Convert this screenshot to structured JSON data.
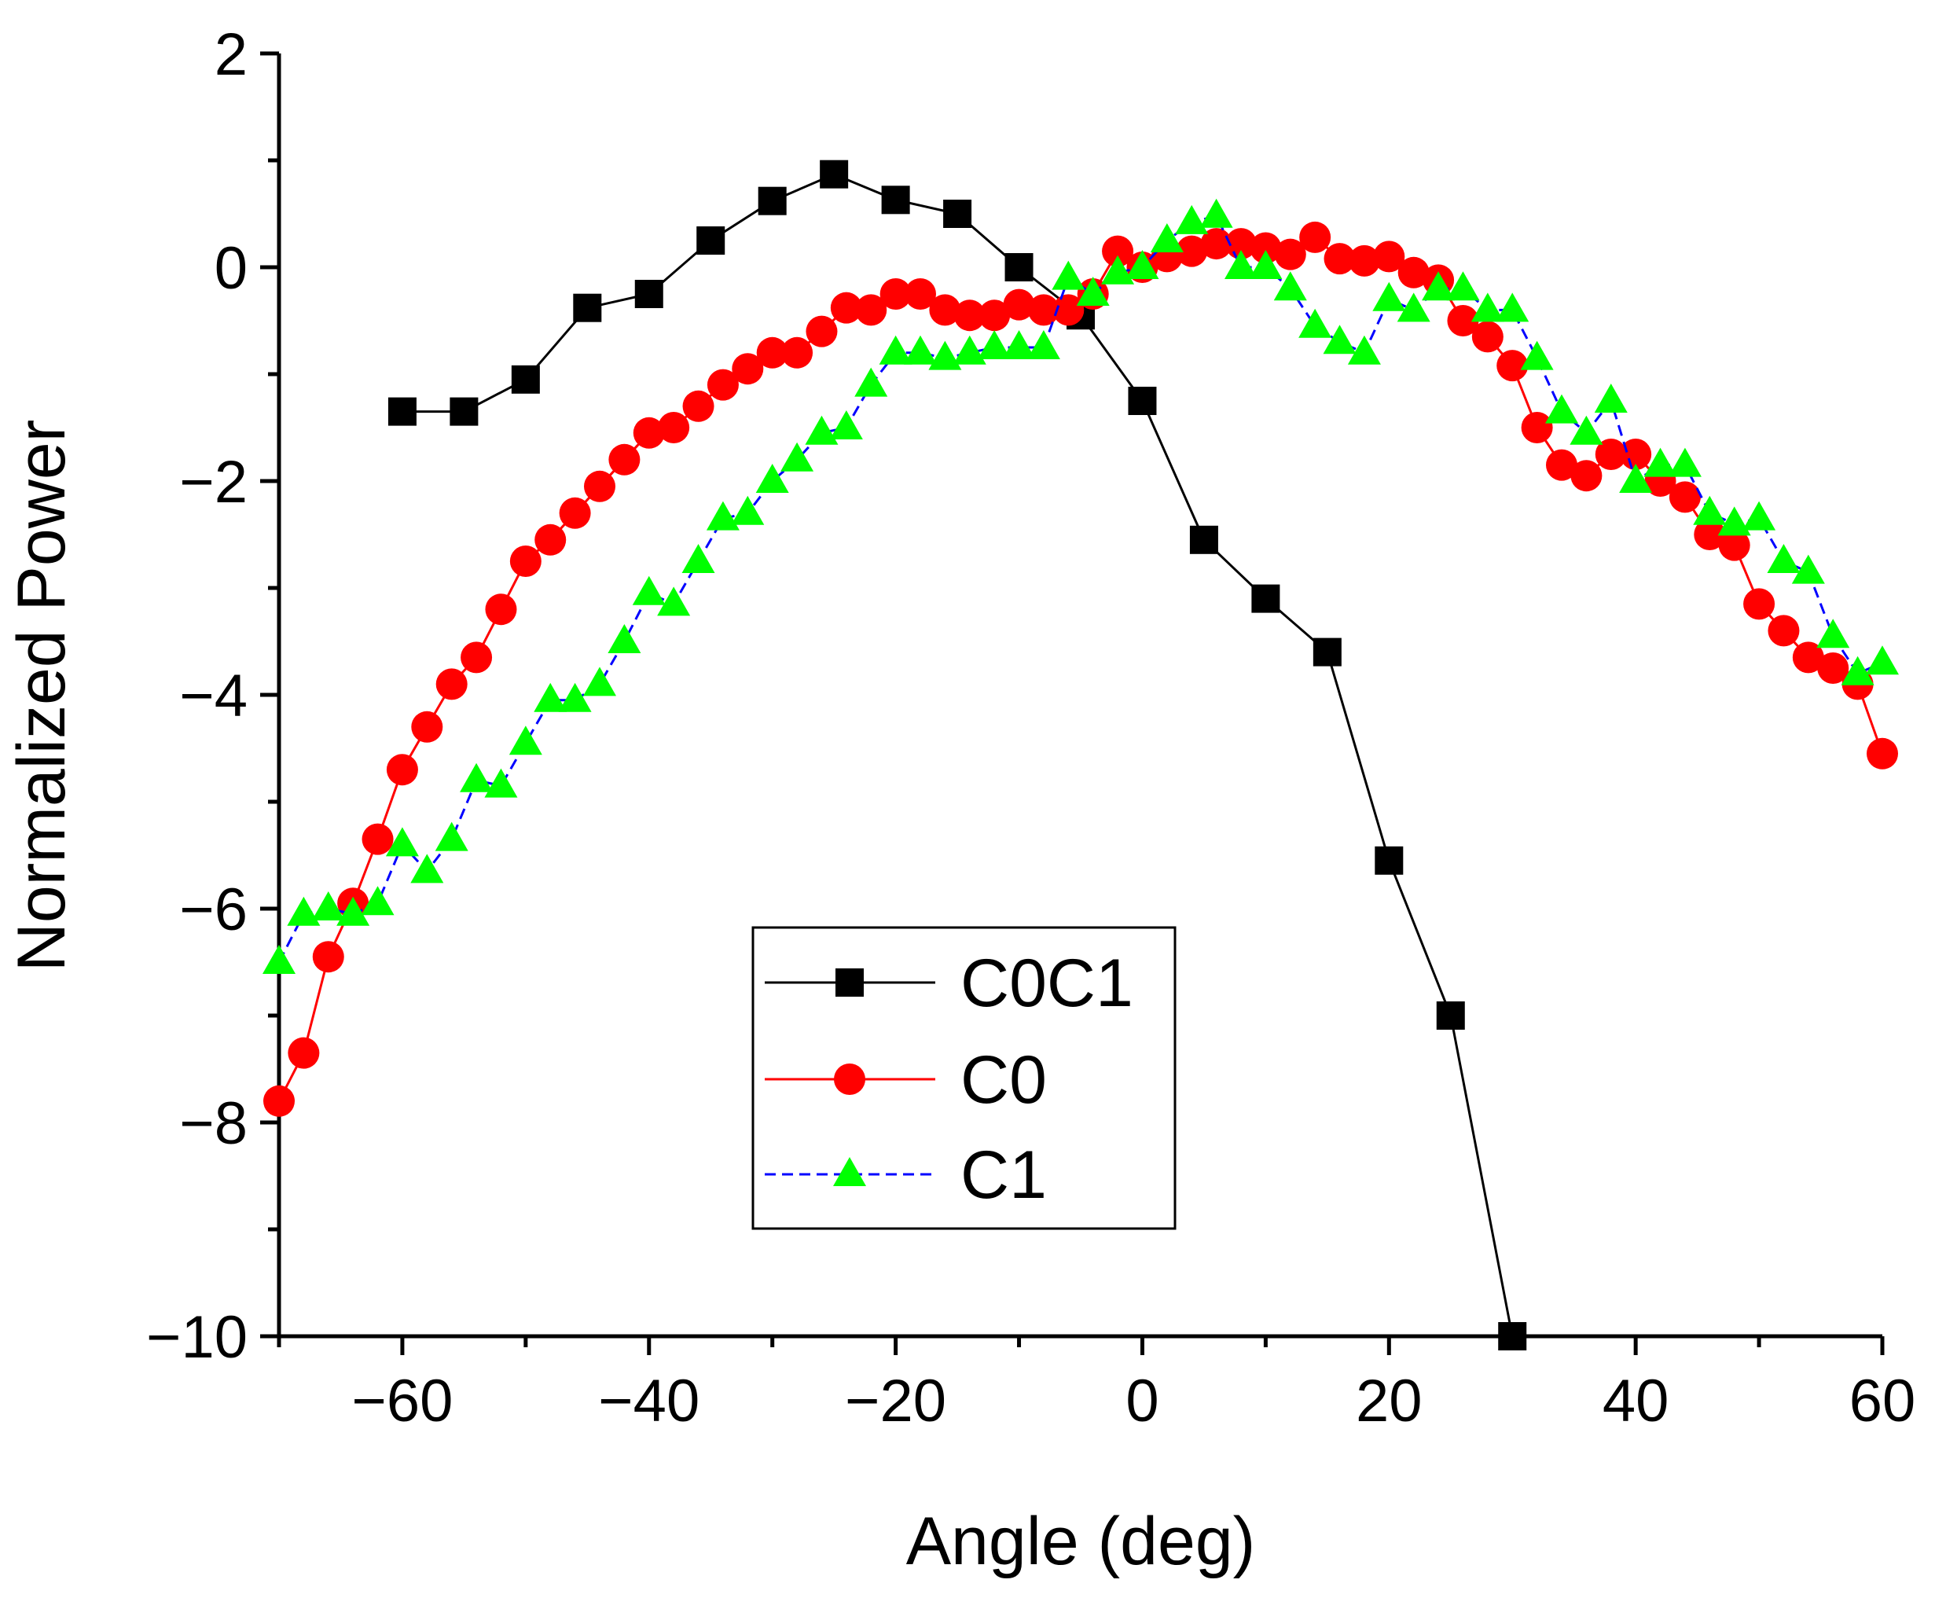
{
  "chart_data": {
    "type": "line",
    "title": "",
    "xlabel": "Angle (deg)",
    "ylabel": "Normalized Power",
    "xlim": [
      -70,
      60
    ],
    "ylim": [
      -10,
      2
    ],
    "x_ticks": [
      -60,
      -40,
      -20,
      0,
      20,
      40,
      60
    ],
    "y_ticks": [
      2,
      0,
      -2,
      -4,
      -6,
      -8,
      -10
    ],
    "x_tick_labels": [
      "−60",
      "−40",
      "−20",
      "0",
      "20",
      "40",
      "60"
    ],
    "y_tick_labels": [
      "2",
      "0",
      "−2",
      "−4",
      "−6",
      "−8",
      "−10"
    ],
    "grid": false,
    "legend_position": "lower-center",
    "series": [
      {
        "name": "C0C1",
        "color": "#000000",
        "marker": "square",
        "line_style": "solid",
        "x": [
          -60,
          -55,
          -50,
          -45,
          -40,
          -35,
          -30,
          -25,
          -20,
          -15,
          -10,
          -5,
          0,
          5,
          10,
          15,
          20,
          25,
          30
        ],
        "y": [
          -1.35,
          -1.35,
          -1.05,
          -0.38,
          -0.25,
          0.25,
          0.62,
          0.87,
          0.63,
          0.5,
          0.0,
          -0.45,
          -1.25,
          -2.55,
          -3.1,
          -3.6,
          -5.55,
          -7.0,
          -10.0
        ]
      },
      {
        "name": "C0",
        "color": "#ff0000",
        "marker": "circle",
        "line_style": "solid",
        "x": [
          -70,
          -68,
          -66,
          -64,
          -62,
          -60,
          -58,
          -56,
          -54,
          -52,
          -50,
          -48,
          -46,
          -44,
          -42,
          -40,
          -38,
          -36,
          -34,
          -32,
          -30,
          -28,
          -26,
          -24,
          -22,
          -20,
          -18,
          -16,
          -14,
          -12,
          -10,
          -8,
          -6,
          -4,
          -2,
          0,
          2,
          4,
          6,
          8,
          10,
          12,
          14,
          16,
          18,
          20,
          22,
          24,
          26,
          28,
          30,
          32,
          34,
          36,
          38,
          40,
          42,
          44,
          46,
          48,
          50,
          52,
          54,
          56,
          58,
          60
        ],
        "y": [
          -7.8,
          -7.35,
          -6.45,
          -5.95,
          -5.35,
          -4.7,
          -4.3,
          -3.9,
          -3.65,
          -3.2,
          -2.75,
          -2.55,
          -2.3,
          -2.05,
          -1.8,
          -1.55,
          -1.5,
          -1.3,
          -1.1,
          -0.95,
          -0.8,
          -0.8,
          -0.6,
          -0.38,
          -0.4,
          -0.25,
          -0.25,
          -0.4,
          -0.45,
          -0.45,
          -0.35,
          -0.4,
          -0.4,
          -0.25,
          0.15,
          0.0,
          0.1,
          0.15,
          0.22,
          0.22,
          0.18,
          0.12,
          0.28,
          0.08,
          0.06,
          0.1,
          -0.05,
          -0.12,
          -0.5,
          -0.65,
          -0.92,
          -1.5,
          -1.85,
          -1.95,
          -1.75,
          -1.75,
          -2.0,
          -2.15,
          -2.5,
          -2.6,
          -3.15,
          -3.4,
          -3.65,
          -3.75,
          -3.9,
          -4.55
        ]
      },
      {
        "name": "C1",
        "color": "#00ff00",
        "line_color": "#0000ff",
        "marker": "triangle",
        "line_style": "dashed",
        "x": [
          -70,
          -68,
          -66,
          -64,
          -62,
          -60,
          -58,
          -56,
          -54,
          -52,
          -50,
          -48,
          -46,
          -44,
          -42,
          -40,
          -38,
          -36,
          -34,
          -32,
          -30,
          -28,
          -26,
          -24,
          -22,
          -20,
          -18,
          -16,
          -14,
          -12,
          -10,
          -8,
          -6,
          -4,
          -2,
          0,
          2,
          4,
          6,
          8,
          10,
          12,
          14,
          16,
          18,
          20,
          22,
          24,
          26,
          28,
          30,
          32,
          34,
          36,
          38,
          40,
          42,
          44,
          46,
          48,
          50,
          52,
          54,
          56,
          58,
          60
        ],
        "y": [
          -6.5,
          -6.05,
          -6.0,
          -6.05,
          -5.95,
          -5.4,
          -5.65,
          -5.35,
          -4.8,
          -4.85,
          -4.45,
          -4.05,
          -4.05,
          -3.9,
          -3.5,
          -3.05,
          -3.15,
          -2.75,
          -2.35,
          -2.3,
          -2.0,
          -1.8,
          -1.55,
          -1.5,
          -1.1,
          -0.8,
          -0.8,
          -0.85,
          -0.8,
          -0.75,
          -0.75,
          -0.75,
          -0.1,
          -0.25,
          -0.05,
          0.0,
          0.25,
          0.42,
          0.48,
          0.0,
          0.0,
          -0.2,
          -0.55,
          -0.7,
          -0.8,
          -0.3,
          -0.4,
          -0.2,
          -0.2,
          -0.4,
          -0.4,
          -0.85,
          -1.35,
          -1.55,
          -1.25,
          -2.0,
          -1.85,
          -1.85,
          -2.3,
          -2.4,
          -2.35,
          -2.75,
          -2.85,
          -3.45,
          -3.8,
          -3.7
        ]
      }
    ]
  }
}
